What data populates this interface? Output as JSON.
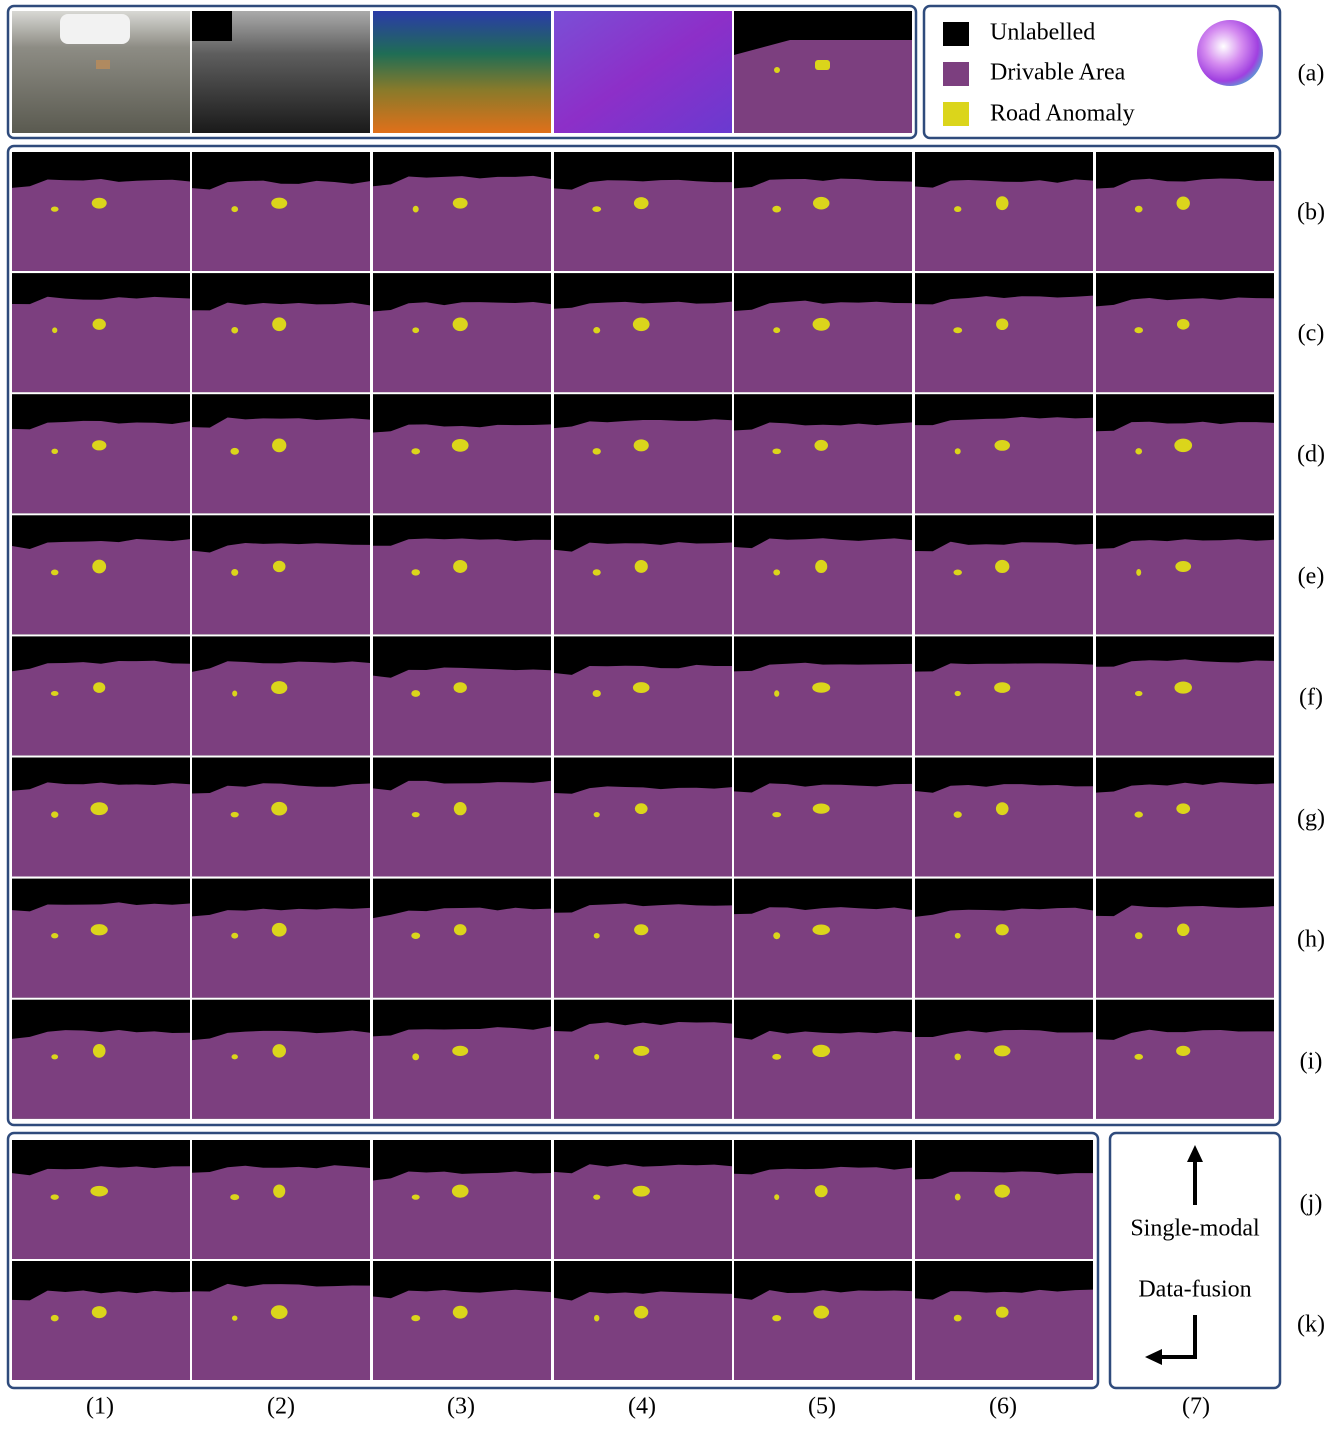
{
  "row_labels": [
    "(a)",
    "(b)",
    "(c)",
    "(d)",
    "(e)",
    "(f)",
    "(g)",
    "(h)",
    "(i)",
    "(j)",
    "(k)"
  ],
  "column_labels": [
    "(1)",
    "(2)",
    "(3)",
    "(4)",
    "(5)",
    "(6)",
    "(7)"
  ],
  "legend": {
    "items": [
      "Unlabelled",
      "Drivable Area",
      "Road Anomaly"
    ]
  },
  "direction_box": {
    "up_label": "Single-modal",
    "down_label": "Data-fusion"
  }
}
